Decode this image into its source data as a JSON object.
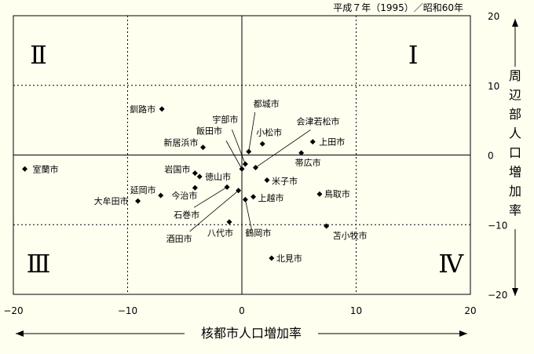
{
  "header_note": "平成７年（1995）／昭和60年",
  "chart_data": {
    "type": "scatter",
    "xlabel": "核都市人口増加率",
    "ylabel": "周辺部人口増加率",
    "xlim": [
      -20,
      20
    ],
    "ylim": [
      -20,
      20
    ],
    "xticks": [
      -20,
      -10,
      0,
      10,
      20
    ],
    "yticks": [
      20,
      10,
      0,
      -10,
      -20
    ],
    "grid": true,
    "quadrants": [
      "I",
      "II",
      "III",
      "IV"
    ],
    "points": [
      {
        "name": "室蘭市",
        "x": -19.0,
        "y": -2.0
      },
      {
        "name": "釧路市",
        "x": -7.0,
        "y": 6.6
      },
      {
        "name": "新居浜市",
        "x": -3.4,
        "y": 1.1
      },
      {
        "name": "岩国市",
        "x": -4.1,
        "y": -2.6
      },
      {
        "name": "徳山市",
        "x": -3.7,
        "y": -3.1
      },
      {
        "name": "延岡市",
        "x": -7.1,
        "y": -5.8
      },
      {
        "name": "大牟田市",
        "x": -9.1,
        "y": -6.6
      },
      {
        "name": "今治市",
        "x": -4.1,
        "y": -4.7
      },
      {
        "name": "石巻市",
        "x": -1.3,
        "y": -4.6
      },
      {
        "name": "酒田市",
        "x": -0.3,
        "y": -5.1
      },
      {
        "name": "八代市",
        "x": -1.1,
        "y": -9.6
      },
      {
        "name": "宇部市",
        "x": 0.3,
        "y": -1.3
      },
      {
        "name": "飯田市",
        "x": 0.0,
        "y": -2.0
      },
      {
        "name": "都城市",
        "x": 0.6,
        "y": 0.5
      },
      {
        "name": "会津若松市",
        "x": 1.2,
        "y": -1.8
      },
      {
        "name": "小松市",
        "x": 1.8,
        "y": 1.6
      },
      {
        "name": "上田市",
        "x": 6.2,
        "y": 1.9
      },
      {
        "name": "帯広市",
        "x": 5.2,
        "y": 0.3
      },
      {
        "name": "米子市",
        "x": 2.2,
        "y": -3.6
      },
      {
        "name": "上越市",
        "x": 1.0,
        "y": -6.0
      },
      {
        "name": "鶴岡市",
        "x": 0.3,
        "y": -6.4
      },
      {
        "name": "鳥取市",
        "x": 6.8,
        "y": -5.6
      },
      {
        "name": "苫小牧市",
        "x": 7.4,
        "y": -10.2
      },
      {
        "name": "北見市",
        "x": 2.6,
        "y": -14.8
      }
    ]
  }
}
